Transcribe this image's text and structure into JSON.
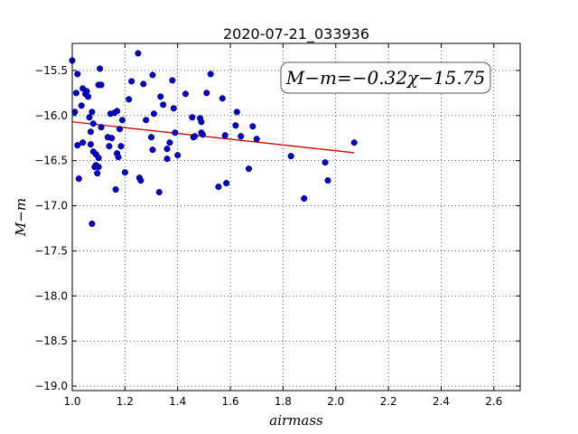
{
  "chart_data": {
    "type": "scatter",
    "title": "2020-07-21_033936",
    "xlabel": "airmass",
    "ylabel": "M−m",
    "xlim": [
      1.0,
      2.7
    ],
    "ylim": [
      -19.05,
      -15.2
    ],
    "x_ticks": [
      1.0,
      1.2,
      1.4,
      1.6,
      1.8,
      2.0,
      2.2,
      2.4,
      2.6
    ],
    "x_tick_labels": [
      "1.0",
      "1.2",
      "1.4",
      "1.6",
      "1.8",
      "2.0",
      "2.2",
      "2.4",
      "2.6"
    ],
    "y_ticks": [
      -15.5,
      -16.0,
      -16.5,
      -17.0,
      -17.5,
      -18.0,
      -18.5,
      -19.0
    ],
    "y_tick_labels": [
      "−15.5",
      "−16.0",
      "−16.5",
      "−17.0",
      "−17.5",
      "−18.0",
      "−18.5",
      "−19.0"
    ],
    "grid": true,
    "point_color": "#0000cc",
    "fit_color": "#cc0000",
    "annotation": "M−m=−0.32χ−15.75",
    "fit": {
      "slope": -0.32,
      "intercept": -15.75,
      "x_range": [
        1.0,
        2.07
      ]
    },
    "points": [
      [
        1.0,
        -15.39
      ],
      [
        1.01,
        -15.96
      ],
      [
        1.015,
        -15.75
      ],
      [
        1.02,
        -15.54
      ],
      [
        1.02,
        -16.33
      ],
      [
        1.025,
        -16.7
      ],
      [
        1.035,
        -15.89
      ],
      [
        1.04,
        -16.3
      ],
      [
        1.04,
        -15.7
      ],
      [
        1.05,
        -15.76
      ],
      [
        1.055,
        -15.73
      ],
      [
        1.06,
        -15.79
      ],
      [
        1.065,
        -16.02
      ],
      [
        1.07,
        -16.32
      ],
      [
        1.07,
        -16.18
      ],
      [
        1.075,
        -15.96
      ],
      [
        1.08,
        -16.09
      ],
      [
        1.08,
        -16.4
      ],
      [
        1.085,
        -16.57
      ],
      [
        1.075,
        -17.2
      ],
      [
        1.09,
        -16.55
      ],
      [
        1.09,
        -16.43
      ],
      [
        1.095,
        -16.64
      ],
      [
        1.1,
        -16.47
      ],
      [
        1.1,
        -16.57
      ],
      [
        1.1,
        -15.66
      ],
      [
        1.105,
        -15.48
      ],
      [
        1.11,
        -15.66
      ],
      [
        1.11,
        -16.13
      ],
      [
        1.135,
        -16.24
      ],
      [
        1.14,
        -16.34
      ],
      [
        1.145,
        -15.98
      ],
      [
        1.15,
        -16.25
      ],
      [
        1.16,
        -15.97
      ],
      [
        1.165,
        -16.82
      ],
      [
        1.17,
        -15.95
      ],
      [
        1.17,
        -16.42
      ],
      [
        1.175,
        -16.46
      ],
      [
        1.18,
        -16.15
      ],
      [
        1.185,
        -16.34
      ],
      [
        1.19,
        -16.05
      ],
      [
        1.2,
        -16.63
      ],
      [
        1.215,
        -15.82
      ],
      [
        1.225,
        -15.62
      ],
      [
        1.25,
        -15.31
      ],
      [
        1.255,
        -16.69
      ],
      [
        1.26,
        -16.72
      ],
      [
        1.27,
        -15.65
      ],
      [
        1.28,
        -16.05
      ],
      [
        1.3,
        -16.24
      ],
      [
        1.305,
        -15.55
      ],
      [
        1.305,
        -16.38
      ],
      [
        1.31,
        -15.98
      ],
      [
        1.33,
        -16.85
      ],
      [
        1.335,
        -15.79
      ],
      [
        1.345,
        -15.88
      ],
      [
        1.36,
        -16.37
      ],
      [
        1.36,
        -16.48
      ],
      [
        1.37,
        -16.3
      ],
      [
        1.38,
        -15.61
      ],
      [
        1.385,
        -15.92
      ],
      [
        1.39,
        -16.19
      ],
      [
        1.4,
        -16.44
      ],
      [
        1.43,
        -15.76
      ],
      [
        1.455,
        -16.02
      ],
      [
        1.46,
        -16.24
      ],
      [
        1.465,
        -16.23
      ],
      [
        1.485,
        -16.03
      ],
      [
        1.49,
        -16.07
      ],
      [
        1.49,
        -16.19
      ],
      [
        1.495,
        -16.21
      ],
      [
        1.51,
        -15.75
      ],
      [
        1.525,
        -15.54
      ],
      [
        1.555,
        -16.79
      ],
      [
        1.57,
        -15.81
      ],
      [
        1.58,
        -16.22
      ],
      [
        1.585,
        -16.75
      ],
      [
        1.62,
        -16.11
      ],
      [
        1.625,
        -15.96
      ],
      [
        1.64,
        -16.23
      ],
      [
        1.67,
        -16.59
      ],
      [
        1.685,
        -16.12
      ],
      [
        1.7,
        -16.26
      ],
      [
        1.83,
        -16.45
      ],
      [
        1.88,
        -16.92
      ],
      [
        1.96,
        -16.52
      ],
      [
        1.97,
        -16.72
      ],
      [
        2.07,
        -16.3
      ]
    ]
  }
}
